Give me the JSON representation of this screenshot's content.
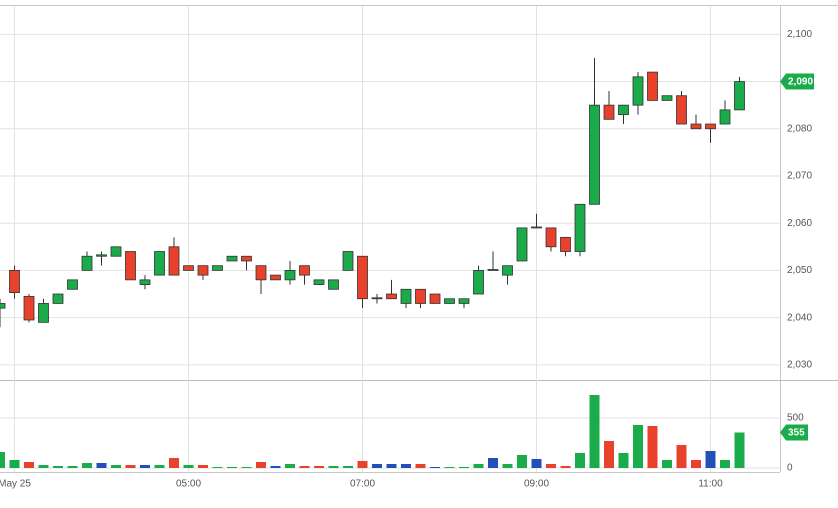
{
  "chart_data": {
    "type": "candlestick",
    "categories": [
      null,
      "May 25",
      null,
      null,
      null,
      null,
      null,
      null,
      null,
      null,
      null,
      null,
      null,
      "05:00",
      null,
      null,
      null,
      null,
      null,
      null,
      null,
      null,
      null,
      null,
      null,
      "07:00",
      null,
      null,
      null,
      null,
      null,
      null,
      null,
      null,
      null,
      null,
      null,
      "09:00",
      null,
      null,
      null,
      null,
      null,
      null,
      null,
      null,
      null,
      null,
      null,
      "11:00",
      null,
      null
    ],
    "open": [
      2042,
      2050,
      2044.5,
      2039,
      2043,
      2046,
      2050,
      2053,
      2053,
      2054,
      2047,
      2049,
      2055,
      2051,
      2051,
      2050,
      2052,
      2053,
      2051,
      2049,
      2048,
      2051,
      2047,
      2046,
      2050,
      2053,
      2044,
      2045,
      2043,
      2046,
      2045,
      2043,
      2043,
      2045,
      2050,
      2049,
      2052,
      2059,
      2059,
      2057,
      2054,
      2064,
      2085,
      2083,
      2085,
      2092,
      2086,
      2087,
      2081,
      2081,
      2081,
      2084
    ],
    "high": [
      2044,
      2051,
      2045,
      2044,
      2045,
      2048,
      2054,
      2054,
      2055,
      2054,
      2049,
      2054,
      2057,
      2051,
      2051,
      2051,
      2053,
      2053,
      2051,
      2049,
      2052,
      2051,
      2048,
      2048,
      2054,
      2053,
      2045,
      2048,
      2046,
      2046,
      2045,
      2044,
      2044,
      2051,
      2054,
      2051,
      2059,
      2062,
      2059,
      2057,
      2064,
      2095,
      2088,
      2085,
      2092,
      2092,
      2087,
      2088,
      2083,
      2081,
      2086,
      2091
    ],
    "low": [
      2038,
      2044,
      2039,
      2039,
      2043,
      2046,
      2050,
      2051,
      2053,
      2048,
      2046,
      2049,
      2049,
      2050,
      2048,
      2050,
      2052,
      2050,
      2045,
      2048,
      2047,
      2047,
      2047,
      2046,
      2050,
      2042,
      2043,
      2044,
      2042,
      2042,
      2043,
      2043,
      2042,
      2045,
      2050,
      2047,
      2052,
      2059,
      2054,
      2053,
      2053,
      2064,
      2082,
      2081,
      2083,
      2086,
      2086,
      2081,
      2080,
      2077,
      2081,
      2084
    ],
    "close": [
      2043,
      2045.3,
      2039.5,
      2043,
      2045,
      2048,
      2053,
      2053.3,
      2055,
      2048,
      2048,
      2054,
      2049,
      2050,
      2049,
      2051,
      2053,
      2052,
      2048,
      2048,
      2050,
      2049,
      2048,
      2048,
      2054,
      2044,
      2044.2,
      2044,
      2046,
      2043,
      2043,
      2044,
      2044,
      2050,
      2050.2,
      2051,
      2059,
      2059.2,
      2055,
      2054,
      2064,
      2085,
      2082,
      2085,
      2091,
      2086,
      2087,
      2081,
      2080,
      2080,
      2084,
      2090
    ],
    "close_label": "2,090",
    "volume": [
      160,
      80,
      60,
      30,
      20,
      20,
      50,
      50,
      30,
      30,
      30,
      30,
      100,
      30,
      30,
      10,
      10,
      10,
      60,
      20,
      40,
      20,
      20,
      20,
      20,
      70,
      40,
      40,
      40,
      40,
      10,
      10,
      10,
      40,
      100,
      40,
      130,
      90,
      40,
      20,
      150,
      730,
      270,
      150,
      430,
      420,
      80,
      230,
      80,
      170,
      80,
      355
    ],
    "volume_colors": [
      "#1aab4b",
      "#1aab4b",
      "#e8412c",
      "#1aab4b",
      "#1aab4b",
      "#1aab4b",
      "#1aab4b",
      "#2250b8",
      "#1aab4b",
      "#e8412c",
      "#2250b8",
      "#1aab4b",
      "#e8412c",
      "#1aab4b",
      "#e8412c",
      "#1aab4b",
      "#1aab4b",
      "#1aab4b",
      "#e8412c",
      "#2250b8",
      "#1aab4b",
      "#e8412c",
      "#e8412c",
      "#1aab4b",
      "#1aab4b",
      "#e8412c",
      "#2250b8",
      "#2250b8",
      "#2250b8",
      "#e8412c",
      "#2250b8",
      "#1aab4b",
      "#1aab4b",
      "#1aab4b",
      "#2250b8",
      "#1aab4b",
      "#1aab4b",
      "#2250b8",
      "#e8412c",
      "#e8412c",
      "#1aab4b",
      "#1aab4b",
      "#e8412c",
      "#1aab4b",
      "#1aab4b",
      "#e8412c",
      "#1aab4b",
      "#e8412c",
      "#e8412c",
      "#2250b8",
      "#1aab4b",
      "#1aab4b"
    ],
    "up_color": "#1aab4b",
    "down_color": "#e8412c",
    "ylim": [
      2027,
      2106
    ],
    "yticks": [
      {
        "value": 2030,
        "label": "2,030"
      },
      {
        "value": 2040,
        "label": "2,040"
      },
      {
        "value": 2050,
        "label": "2,050"
      },
      {
        "value": 2060,
        "label": "2,060"
      },
      {
        "value": 2070,
        "label": "2,070"
      },
      {
        "value": 2080,
        "label": "2,080"
      },
      {
        "value": 2090,
        "label": "2,090"
      },
      {
        "value": 2100,
        "label": "2,100"
      }
    ],
    "y2lim": [
      0,
      880
    ],
    "y2ticks": [
      0,
      500
    ],
    "grid": true
  }
}
